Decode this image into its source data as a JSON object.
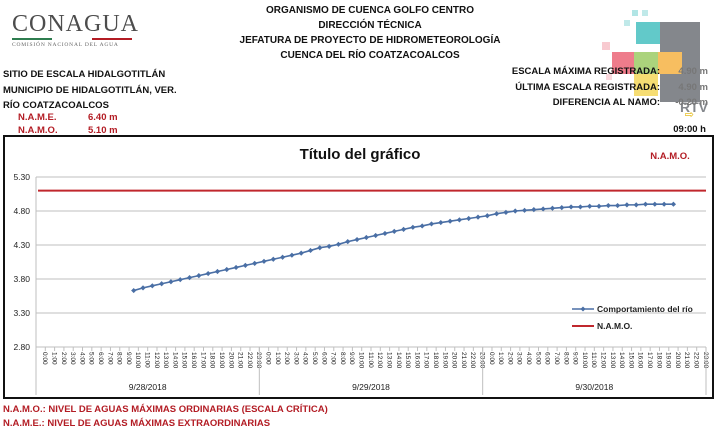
{
  "logo": {
    "name": "CONAGUA",
    "subtitle": "COMISIÓN NACIONAL DEL AGUA"
  },
  "header": {
    "lines": [
      "ORGANISMO DE CUENCA GOLFO CENTRO",
      "DIRECCIÓN TÉCNICA",
      "JEFATURA DE PROYECTO DE HIDROMETEOROLOGÍA",
      "CUENCA DEL RÍO COATZACOALCOS"
    ]
  },
  "site": {
    "station": "SITIO DE ESCALA HIDALGOTITLÁN",
    "municipality": "MUNICIPIO DE HIDALGOTITLÁN, VER.",
    "river": "RÍO COATZACOALCOS",
    "name_label": "N.A.M.E.",
    "name_value": "6.40 m",
    "namo_label": "N.A.M.O.",
    "namo_value": "5.10 m"
  },
  "stats": {
    "max_label": "ESCALA MÁXIMA REGISTRADA:",
    "max_value": "4.90 m",
    "last_label": "ÚLTIMA ESCALA REGISTRADA:",
    "last_value": "4.90 m",
    "diff_label": "DIFERENCIA AL NAMO:",
    "diff_value": "-0.20 m",
    "trend_icon": "arrow-right-icon",
    "time": "09:00 h"
  },
  "watermark": {
    "text": "RTV",
    "colors": [
      "#e84a5f",
      "#8bc34a",
      "#26b5b5",
      "#f5a623",
      "#f3d03e",
      "#555a60"
    ]
  },
  "footer": {
    "namo_def": "N.A.M.O.: NIVEL DE AGUAS MÁXIMAS ORDINARIAS (ESCALA CRÍTICA)",
    "name_def": "N.A.M.E.: NIVEL DE AGUAS MÁXIMAS EXTRAORDINARIAS"
  },
  "colors": {
    "series": "#4a6fa5",
    "namo": "#c0272d",
    "grid": "#bfbfbf",
    "red_text": "#b31c24"
  },
  "chart_data": {
    "type": "line",
    "title": "Título del gráfico",
    "corner_label": "N.A.M.O.",
    "xlabel": "",
    "ylabel": "",
    "ylim": [
      2.8,
      5.3
    ],
    "yticks": [
      "2.80",
      "3.30",
      "3.80",
      "4.30",
      "4.80",
      "5.30"
    ],
    "grid": true,
    "legend_position": "lower-right",
    "dates": [
      "9/28/2018",
      "9/29/2018",
      "9/30/2018"
    ],
    "hours": [
      "0:00",
      "1:00",
      "2:00",
      "3:00",
      "4:00",
      "5:00",
      "6:00",
      "7:00",
      "8:00",
      "9:00",
      "10:00",
      "11:00",
      "12:00",
      "13:00",
      "14:00",
      "15:00",
      "16:00",
      "17:00",
      "18:00",
      "19:00",
      "20:00",
      "21:00",
      "22:00",
      "23:00"
    ],
    "series": [
      {
        "name": "Comportamiento del río",
        "start_index": 10,
        "values": [
          3.63,
          3.67,
          3.7,
          3.73,
          3.76,
          3.79,
          3.82,
          3.85,
          3.88,
          3.91,
          3.94,
          3.97,
          4.0,
          4.03,
          4.06,
          4.09,
          4.12,
          4.15,
          4.18,
          4.22,
          4.26,
          4.28,
          4.31,
          4.35,
          4.38,
          4.41,
          4.44,
          4.47,
          4.5,
          4.53,
          4.56,
          4.58,
          4.61,
          4.63,
          4.65,
          4.67,
          4.69,
          4.71,
          4.73,
          4.76,
          4.78,
          4.8,
          4.81,
          4.82,
          4.83,
          4.84,
          4.85,
          4.86,
          4.86,
          4.87,
          4.87,
          4.88,
          4.88,
          4.89,
          4.89,
          4.9,
          4.9,
          4.9,
          4.9
        ]
      },
      {
        "name": "N.A.M.O.",
        "constant": 5.1
      }
    ]
  }
}
